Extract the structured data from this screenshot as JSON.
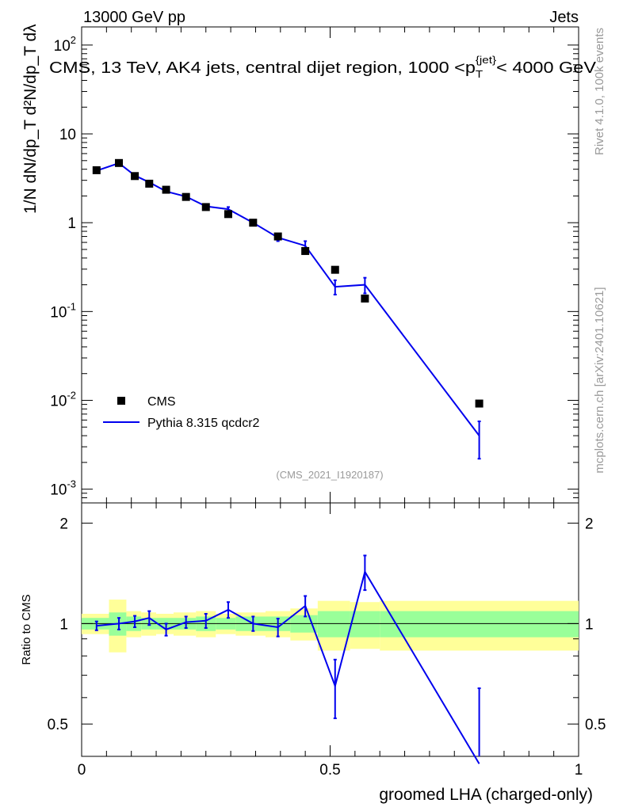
{
  "header": {
    "left": "13000 GeV pp",
    "right": "Jets",
    "title": "CMS, 13 TeV, AK4 jets, central dijet region, 1000 <p_T^{jet}< 4000 GeV",
    "watermark": "(CMS_2021_I1920187)"
  },
  "side": {
    "rivet": "Rivet 4.1.0,  100k events",
    "site": "mcplots.cern.ch [arXiv:2401.10621]"
  },
  "axes": {
    "xlabel": "groomed LHA (charged-only)",
    "ylabel_top": "1/N dN/dp_T d²N/dp_T dλ",
    "ylabel_bottom": "Ratio to CMS",
    "x_ticks": [
      "0",
      "0.5",
      "1"
    ],
    "y_ticks_top": [
      "10^{-3}",
      "10^{-2}",
      "10^{-1}",
      "1",
      "10",
      "10^{2}"
    ],
    "y_ticks_bottom": [
      "0.5",
      "1",
      "2"
    ]
  },
  "legend": {
    "cms": "CMS",
    "mc": "Pythia 8.315 qcdcr2"
  },
  "colors": {
    "mc": "#0000ee",
    "data": "#000000",
    "band_inner": "#99ff99",
    "band_outer": "#ffff99"
  },
  "chart_data": {
    "type": "line",
    "xlim": [
      0,
      1
    ],
    "ylim_top": [
      0.0007,
      160
    ],
    "ylim_bottom": [
      0.4,
      2.3
    ],
    "log_y_top": true,
    "log_y_bottom": true,
    "bin_edges": [
      0.0,
      0.055,
      0.09,
      0.12,
      0.15,
      0.185,
      0.23,
      0.27,
      0.31,
      0.37,
      0.42,
      0.475,
      0.54,
      0.6,
      1.0
    ],
    "series": [
      {
        "name": "CMS",
        "x": [
          0.03,
          0.075,
          0.107,
          0.136,
          0.17,
          0.21,
          0.25,
          0.295,
          0.345,
          0.395,
          0.45,
          0.51,
          0.57,
          0.8
        ],
        "values": [
          3.9,
          4.7,
          3.35,
          2.75,
          2.35,
          1.95,
          1.5,
          1.25,
          1.0,
          0.7,
          0.48,
          0.295,
          0.14,
          0.0092
        ],
        "ratio_band_inner": [
          0.04,
          0.08,
          0.05,
          0.04,
          0.04,
          0.04,
          0.05,
          0.04,
          0.05,
          0.05,
          0.06,
          0.09,
          0.09,
          0.09
        ],
        "ratio_band_outer": [
          0.07,
          0.18,
          0.09,
          0.08,
          0.07,
          0.08,
          0.09,
          0.07,
          0.08,
          0.09,
          0.11,
          0.17,
          0.16,
          0.17
        ]
      },
      {
        "name": "Pythia 8.315 qcdcr2",
        "x": [
          0.03,
          0.075,
          0.107,
          0.136,
          0.17,
          0.21,
          0.25,
          0.295,
          0.345,
          0.395,
          0.45,
          0.51,
          0.57,
          0.8
        ],
        "values": [
          3.85,
          4.68,
          3.4,
          2.85,
          2.25,
          1.97,
          1.53,
          1.42,
          1.0,
          0.68,
          0.55,
          0.19,
          0.2,
          0.004
        ],
        "err_low": [
          0.08,
          0.12,
          0.1,
          0.1,
          0.08,
          0.08,
          0.07,
          0.08,
          0.05,
          0.06,
          0.07,
          0.035,
          0.04,
          0.0018
        ],
        "err_high": [
          0.08,
          0.12,
          0.1,
          0.1,
          0.08,
          0.08,
          0.07,
          0.08,
          0.05,
          0.06,
          0.07,
          0.035,
          0.04,
          0.0018
        ],
        "ratio": [
          0.985,
          1.0,
          1.015,
          1.04,
          0.96,
          1.01,
          1.02,
          1.1,
          1.0,
          0.975,
          1.13,
          0.65,
          1.43,
          0.38
        ],
        "ratio_err": [
          0.03,
          0.04,
          0.04,
          0.05,
          0.04,
          0.04,
          0.05,
          0.06,
          0.05,
          0.06,
          0.08,
          0.13,
          0.17,
          0.26
        ]
      }
    ]
  }
}
